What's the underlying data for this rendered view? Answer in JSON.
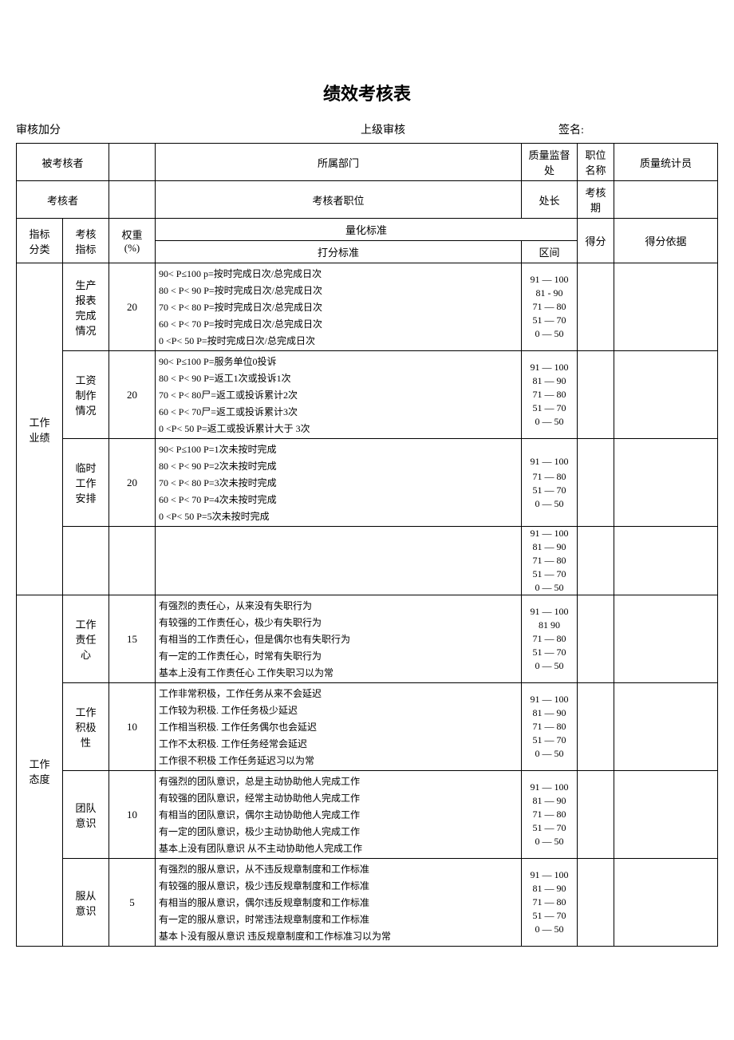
{
  "title": "绩效考核表",
  "header": {
    "left": "审核加分",
    "mid": "上级审核",
    "right": "签名:"
  },
  "info": {
    "r1": {
      "a": "被考核者",
      "b": "",
      "c": "所属部门",
      "d": "质量监督处",
      "e": "职位名称",
      "f": "质量统计员"
    },
    "r2": {
      "a": "考核者",
      "b": "",
      "c": "考核者职位",
      "d": "处长",
      "e": "考核期",
      "f": ""
    }
  },
  "th": {
    "cat": "指标\n分类",
    "ind": "考核\n指标",
    "wt": "权重\n(%)",
    "crit_top": "量化标准",
    "crit": "打分标准",
    "range": "区间",
    "score": "得分",
    "basis": "得分依据"
  },
  "categories": {
    "c1": "工作\n业绩",
    "c2": "工作\n态度"
  },
  "rows": [
    {
      "cat": "c1",
      "ind": "生产\n报表\n完成\n情况",
      "wt": "20",
      "criteria": [
        "90< P≤100 p=按时完成日次/总完成日次",
        "80 < P< 90 P=按时完成日次/总完成日次",
        "70 < P< 80 P=按时完成日次/总完成日次",
        "60 < P< 70 P=按时完成日次/总完成日次",
        "0 <P< 50    P=按时完成日次/总完成日次"
      ],
      "ranges": [
        "91 — 100",
        "81 - 90",
        "71 — 80",
        "51 — 70",
        "0 — 50"
      ]
    },
    {
      "cat": "c1",
      "ind": "工资\n制作\n情况",
      "wt": "20",
      "criteria": [
        "90< P≤100  P=服务单位0投诉",
        "80 < P< 90 P=返工1次或投诉1次",
        "70 < P< 80尸=返工或投诉累计2次",
        "60 < P< 70尸=返工或投诉累计3次",
        "0 <P< 50    P=返工或投诉累计大于   3次"
      ],
      "ranges": [
        "91 — 100",
        "81 — 90",
        "71 — 80",
        "51 — 70",
        "0 — 50"
      ]
    },
    {
      "cat": "c1",
      "ind": "临时\n工作\n安排",
      "wt": "20",
      "criteria": [
        "90< P≤100 P=1次未按时完成",
        "80 < P< 90   P=2次未按时完成",
        "70 < P< 80   P=3次未按时完成",
        "60 < P< 70   P=4次未按时完成",
        "0 <P< 50    P=5次未按时完成"
      ],
      "ranges": [
        "91 — 100",
        "",
        "71 — 80",
        "51 — 70",
        "0 — 50"
      ]
    },
    {
      "cat": "c1",
      "ind": "",
      "wt": "",
      "criteria": [
        "",
        "",
        "",
        "",
        ""
      ],
      "ranges": [
        "91 — 100",
        "81 — 90",
        "71 — 80",
        "51 — 70",
        "0 — 50"
      ]
    },
    {
      "cat": "c2",
      "ind": "工作\n责任\n心",
      "wt": "15",
      "criteria": [
        "有强烈的责任心，从来没有失职行为",
        "有较强的工作责任心，极少有失职行为",
        "有相当的工作责任心，但是偶尔也有失职行为",
        "有一定的工作责任心，时常有失职行为",
        "基本上没有工作责任心 工作失职习以为常"
      ],
      "ranges": [
        "91 — 100",
        "81   90",
        "71 — 80",
        "51 — 70",
        "0 — 50"
      ]
    },
    {
      "cat": "c2",
      "ind": "工作\n积极\n性",
      "wt": "10",
      "criteria": [
        "工作非常积极，工作任务从来不会延迟",
        "工作较为积极. 工作任务极少延迟",
        "工作相当积极. 工作任务偶尔也会延迟",
        "工作不太积极. 工作任务经常会延迟",
        "工作很不积极 工作任务延迟习以为常"
      ],
      "ranges": [
        "91 — 100",
        "81 — 90",
        "71 — 80",
        "51 — 70",
        "0 — 50"
      ]
    },
    {
      "cat": "c2",
      "ind": "团队\n意识",
      "wt": "10",
      "criteria": [
        "有强烈的团队意识，总是主动协助他人完成工作",
        "有较强的团队意识，经常主动协助他人完成工作",
        "有相当的团队意识，偶尔主动协助他人完成工作",
        "有一定的团队意识，极少主动协助他人完成工作",
        "基本上没有团队意识 从不主动协助他人完成工作"
      ],
      "ranges": [
        "91 — 100",
        "81 — 90",
        "71 — 80",
        "51 — 70",
        "0 — 50"
      ]
    },
    {
      "cat": "c2",
      "ind": "服从\n意识",
      "wt": "5",
      "criteria": [
        "有强烈的服从意识，从不违反规章制度和工作标准",
        "有较强的服从意识，极少违反规章制度和工作标准",
        "有相当的服从意识，偶尔违反规章制度和工作标准",
        "有一定的服从意识，时常违法规章制度和工作标准",
        "基本卜没有服从意识 违反规章制度和工作标准习以为常"
      ],
      "ranges": [
        "91 — 100",
        "81 — 90",
        "71 — 80",
        "51 — 70",
        "0 — 50"
      ]
    }
  ]
}
